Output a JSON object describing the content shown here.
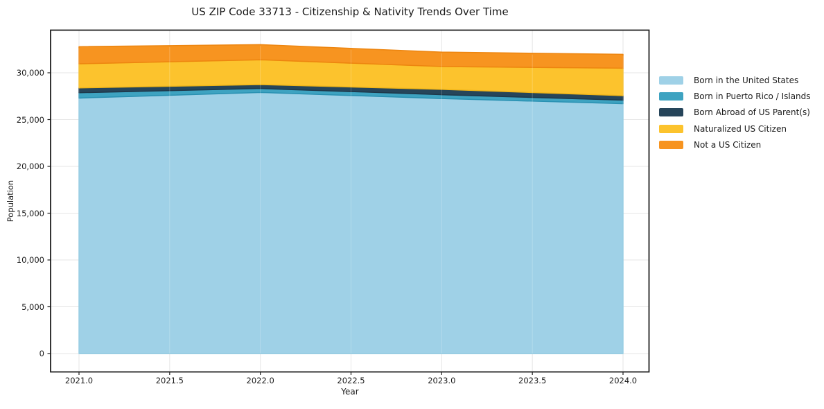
{
  "figure": {
    "title": "US ZIP Code 33713 - Citizenship & Nativity Trends Over Time"
  },
  "chart_data": {
    "type": "area",
    "stacked": true,
    "title": "US ZIP Code 33713 - Citizenship & Nativity Trends Over Time",
    "xlabel": "Year",
    "ylabel": "Population",
    "x": [
      2021,
      2022,
      2023,
      2024
    ],
    "series": [
      {
        "name": "Born in the United States",
        "values": [
          27300,
          27900,
          27250,
          26700
        ],
        "color": "#9fd1e7",
        "edge_color": "#88c5de"
      },
      {
        "name": "Born in Puerto Rico / Islands",
        "values": [
          570,
          420,
          410,
          380
        ],
        "color": "#3ea3c1",
        "edge_color": "#2a91b2"
      },
      {
        "name": "Born Abroad of US Parent(s)",
        "values": [
          520,
          420,
          570,
          480
        ],
        "color": "#26455a",
        "edge_color": "#1e384a"
      },
      {
        "name": "Naturalized US Citizen",
        "values": [
          2570,
          2650,
          2440,
          2930
        ],
        "color": "#fcc32d",
        "edge_color": "#f2b618"
      },
      {
        "name": "Not a US Citizen",
        "values": [
          1830,
          1620,
          1540,
          1480
        ],
        "color": "#f79420",
        "edge_color": "#ed850f"
      }
    ],
    "stacked_totals": [
      32790,
      33010,
      32210,
      31970
    ],
    "x_tick_labels": [
      "2021.0",
      "2021.5",
      "2022.0",
      "2022.5",
      "2023.0",
      "2023.5",
      "2024.0"
    ],
    "y_tick_labels": [
      "0",
      "5,000",
      "10,000",
      "15,000",
      "20,000",
      "25,000",
      "30,000"
    ],
    "xlim": [
      2020.84,
      2024.14
    ],
    "ylim": [
      0,
      34600
    ],
    "grid": true,
    "legend_position": "right-outside"
  },
  "colors": {
    "background": "#ffffff",
    "grid": "#e6e6e6",
    "spine": "#1f1f1f",
    "text": "#1a1a1a"
  }
}
